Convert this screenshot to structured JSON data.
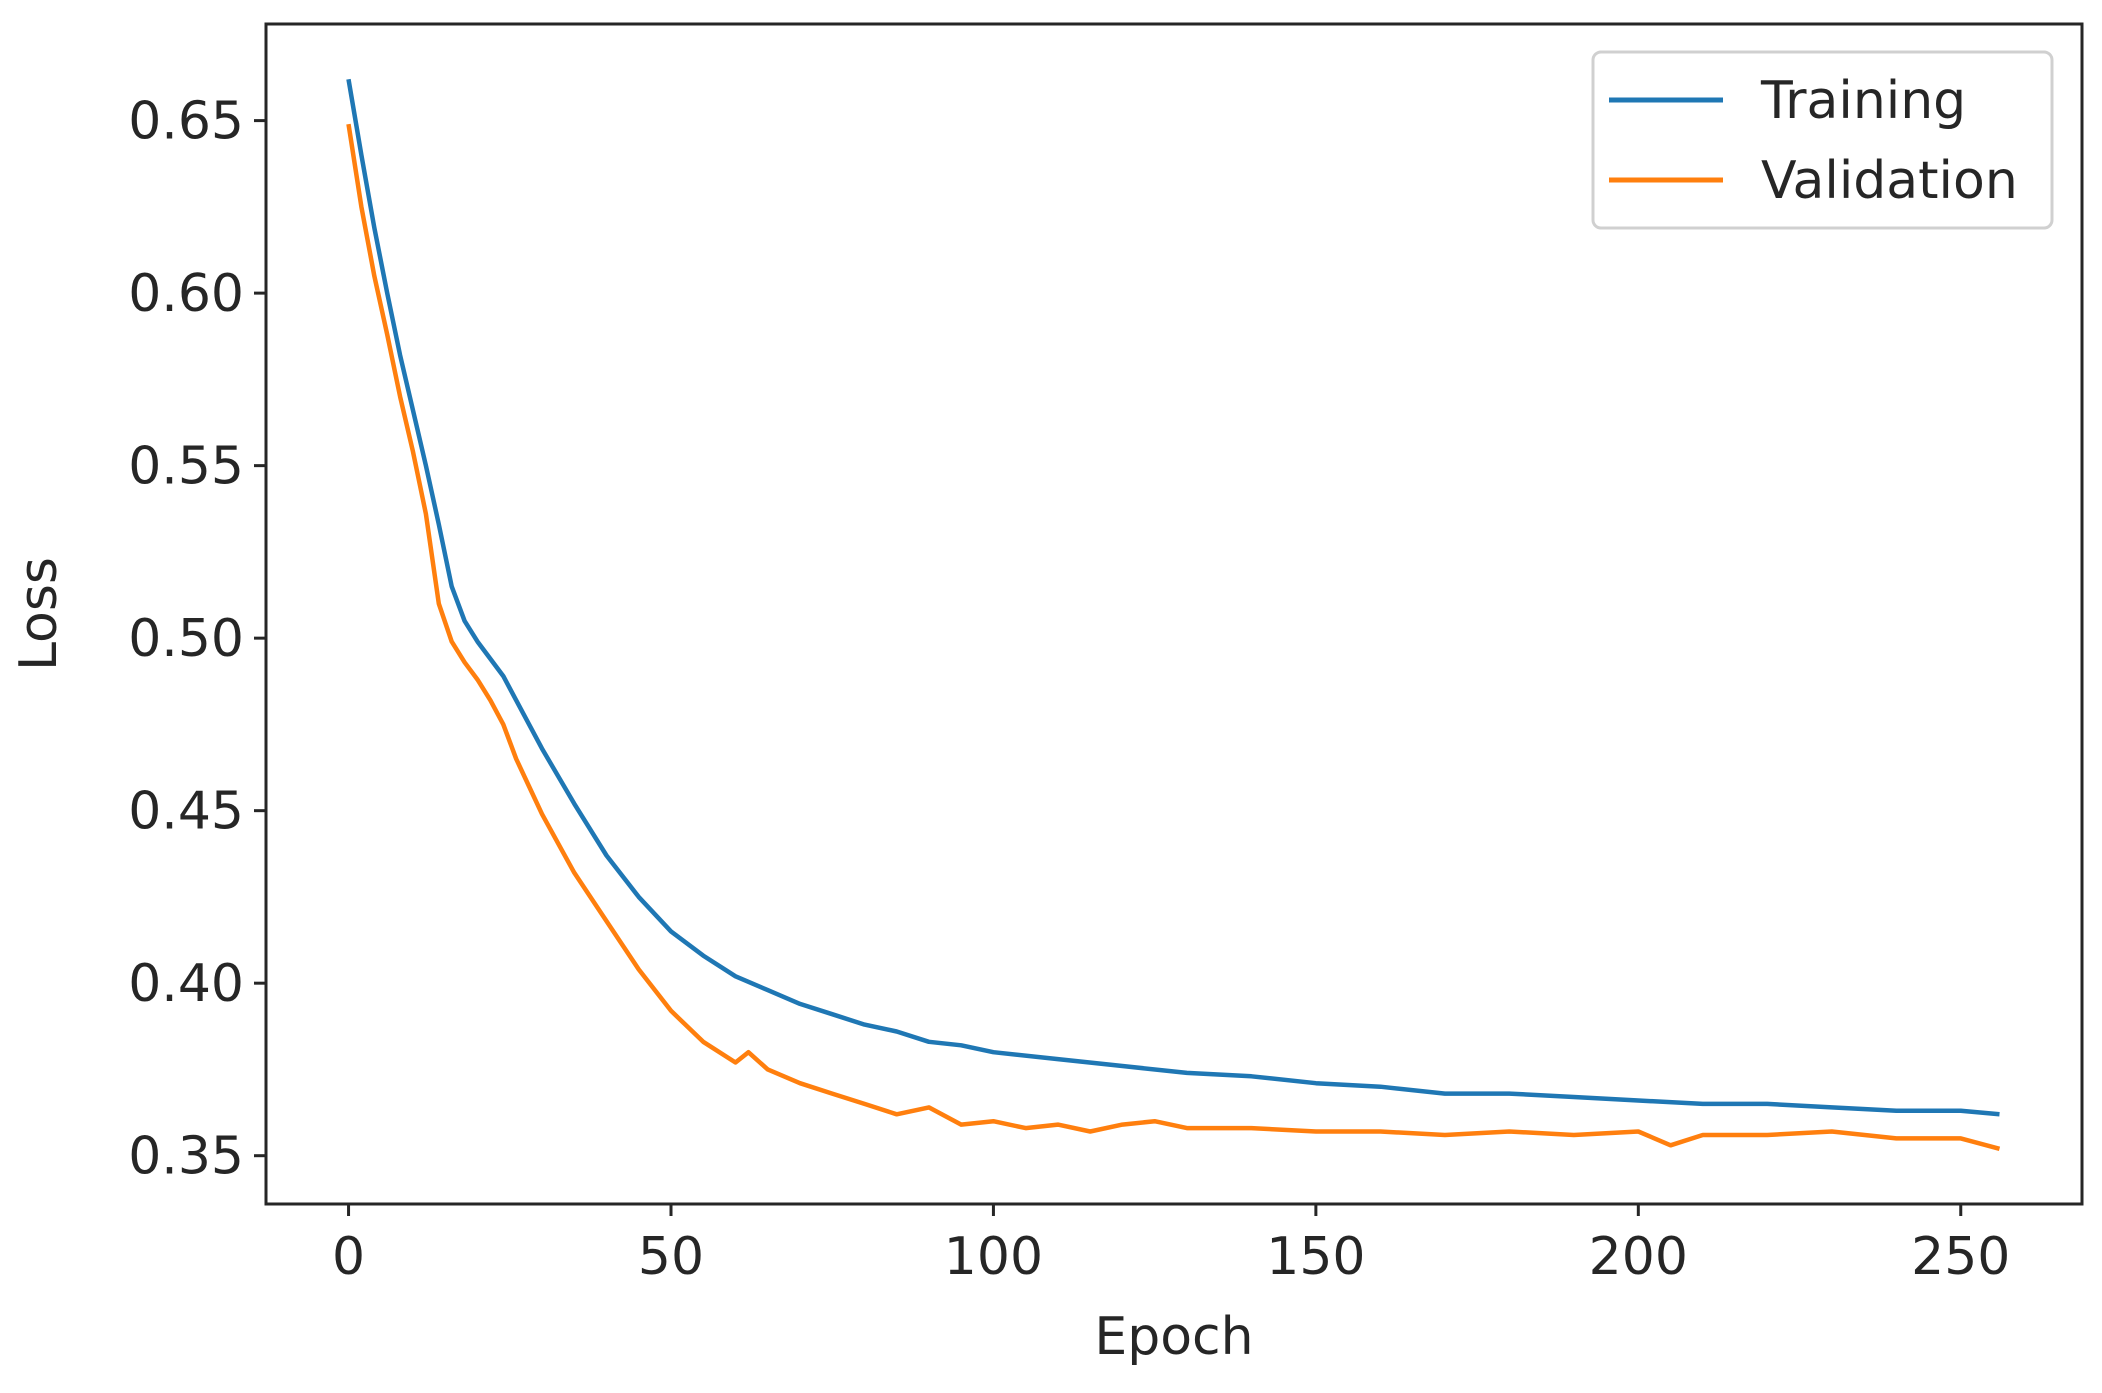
{
  "chart_data": {
    "type": "line",
    "title": "",
    "xlabel": "Epoch",
    "ylabel": "Loss",
    "xlim": [
      -12.8,
      268.8
    ],
    "ylim": [
      0.336,
      0.678
    ],
    "xticks": [
      0,
      50,
      100,
      150,
      200,
      250
    ],
    "xtick_labels": [
      "0",
      "50",
      "100",
      "150",
      "200",
      "250"
    ],
    "yticks": [
      0.35,
      0.4,
      0.45,
      0.5,
      0.55,
      0.6,
      0.65
    ],
    "ytick_labels": [
      "0.35",
      "0.40",
      "0.45",
      "0.50",
      "0.55",
      "0.60",
      "0.65"
    ],
    "grid": false,
    "legend_position": "top-right",
    "series": [
      {
        "name": "Training",
        "color": "#1f77b4",
        "x": [
          0,
          2,
          4,
          6,
          8,
          10,
          12,
          14,
          16,
          18,
          20,
          22,
          24,
          26,
          28,
          30,
          35,
          40,
          45,
          50,
          55,
          60,
          65,
          70,
          75,
          80,
          85,
          90,
          95,
          100,
          110,
          120,
          130,
          140,
          150,
          160,
          170,
          180,
          190,
          200,
          210,
          220,
          230,
          240,
          250,
          256
        ],
        "y": [
          0.662,
          0.64,
          0.619,
          0.6,
          0.582,
          0.566,
          0.55,
          0.533,
          0.515,
          0.505,
          0.499,
          0.494,
          0.489,
          0.482,
          0.475,
          0.468,
          0.452,
          0.437,
          0.425,
          0.415,
          0.408,
          0.402,
          0.398,
          0.394,
          0.391,
          0.388,
          0.386,
          0.383,
          0.382,
          0.38,
          0.378,
          0.376,
          0.374,
          0.373,
          0.371,
          0.37,
          0.368,
          0.368,
          0.367,
          0.366,
          0.365,
          0.365,
          0.364,
          0.363,
          0.363,
          0.362
        ]
      },
      {
        "name": "Validation",
        "color": "#ff7f0e",
        "x": [
          0,
          2,
          4,
          6,
          8,
          10,
          12,
          14,
          16,
          18,
          20,
          22,
          24,
          26,
          28,
          30,
          35,
          40,
          45,
          50,
          55,
          60,
          62,
          65,
          70,
          75,
          80,
          85,
          90,
          95,
          100,
          105,
          110,
          115,
          120,
          125,
          130,
          140,
          150,
          160,
          170,
          180,
          190,
          200,
          205,
          210,
          220,
          230,
          240,
          250,
          256
        ],
        "y": [
          0.649,
          0.625,
          0.605,
          0.588,
          0.57,
          0.554,
          0.536,
          0.51,
          0.499,
          0.493,
          0.488,
          0.482,
          0.475,
          0.465,
          0.457,
          0.449,
          0.432,
          0.418,
          0.404,
          0.392,
          0.383,
          0.377,
          0.38,
          0.375,
          0.371,
          0.368,
          0.365,
          0.362,
          0.364,
          0.359,
          0.36,
          0.358,
          0.359,
          0.357,
          0.359,
          0.36,
          0.358,
          0.358,
          0.357,
          0.357,
          0.356,
          0.357,
          0.356,
          0.357,
          0.353,
          0.356,
          0.356,
          0.357,
          0.355,
          0.355,
          0.352
        ]
      }
    ]
  }
}
